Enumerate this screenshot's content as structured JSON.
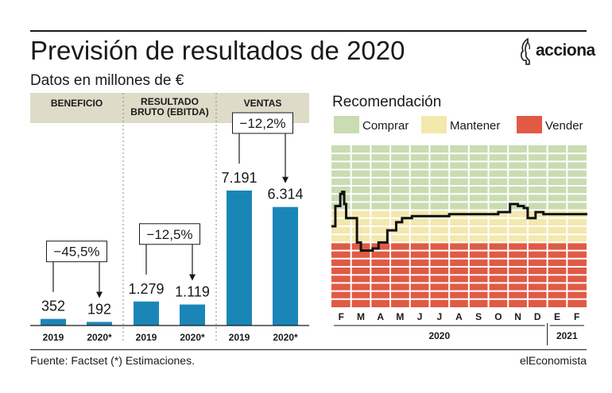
{
  "header": {
    "title": "Previsión de resultados de 2020",
    "subtitle": "Datos en millones de €",
    "logo_text": "acciona"
  },
  "footer": {
    "source": "Fuente: Factset (*) Estimaciones.",
    "brand": "elEconomista"
  },
  "colors": {
    "bar": "#1a86b8",
    "header_band": "#dedbc8",
    "buy": "#c9dcb2",
    "hold": "#f3e8ad",
    "sell": "#e05a45",
    "line": "#111111"
  },
  "chart_data": [
    {
      "type": "bar",
      "groups": [
        {
          "label_lines": [
            "BENEFICIO"
          ],
          "change": "−45,5%",
          "categories": [
            "2019",
            "2020*"
          ],
          "values": [
            352,
            192
          ],
          "value_labels": [
            "352",
            "192"
          ]
        },
        {
          "label_lines": [
            "RESULTADO",
            "BRUTO (EBITDA)"
          ],
          "change": "−12,5%",
          "categories": [
            "2019",
            "2020*"
          ],
          "values": [
            1279,
            1119
          ],
          "value_labels": [
            "1.279",
            "1.119"
          ]
        },
        {
          "label_lines": [
            "VENTAS"
          ],
          "change": "−12,2%",
          "categories": [
            "2019",
            "2020*"
          ],
          "values": [
            7191,
            6314
          ],
          "value_labels": [
            "7.191",
            "6.314"
          ]
        }
      ]
    },
    {
      "type": "line",
      "title": "Recomendación",
      "legend": [
        {
          "label": "Comprar",
          "color": "#c9dcb2"
        },
        {
          "label": "Mantener",
          "color": "#f3e8ad"
        },
        {
          "label": "Vender",
          "color": "#e05a45"
        }
      ],
      "x_months": [
        "F",
        "M",
        "A",
        "M",
        "J",
        "J",
        "A",
        "S",
        "O",
        "N",
        "D",
        "E",
        "F"
      ],
      "x_years": [
        {
          "label": "2020",
          "from": 0,
          "to": 10
        },
        {
          "label": "2021",
          "from": 11,
          "to": 12
        }
      ],
      "scale": {
        "min": 1,
        "max": 5,
        "bands": {
          "sell": [
            1,
            2.6
          ],
          "hold": [
            2.6,
            3.4
          ],
          "buy": [
            3.4,
            5
          ]
        }
      },
      "x": [
        0,
        0.1,
        0.2,
        0.3,
        0.45,
        0.55,
        0.65,
        0.75,
        0.9,
        1.1,
        1.3,
        1.5,
        1.7,
        1.9,
        2.1,
        2.4,
        2.6,
        2.85,
        3.0,
        3.3,
        3.6,
        3.9,
        4.1,
        4.4,
        4.7,
        5.0,
        5.5,
        6.0,
        6.5,
        7.0,
        7.5,
        8.0,
        8.5,
        8.9,
        9.1,
        9.3,
        9.5,
        9.7,
        9.8,
        10.0,
        10.1,
        10.4,
        10.8,
        11.2,
        11.6,
        12.0,
        12.5
      ],
      "y": [
        3.0,
        3.0,
        3.5,
        3.5,
        3.8,
        3.85,
        3.55,
        3.2,
        3.2,
        3.2,
        2.6,
        2.4,
        2.4,
        2.4,
        2.45,
        2.6,
        2.6,
        2.9,
        2.9,
        3.1,
        3.2,
        3.2,
        3.25,
        3.25,
        3.25,
        3.25,
        3.25,
        3.3,
        3.3,
        3.3,
        3.3,
        3.3,
        3.35,
        3.35,
        3.55,
        3.55,
        3.5,
        3.5,
        3.45,
        3.2,
        3.2,
        3.35,
        3.3,
        3.3,
        3.3,
        3.3,
        3.3
      ]
    }
  ]
}
